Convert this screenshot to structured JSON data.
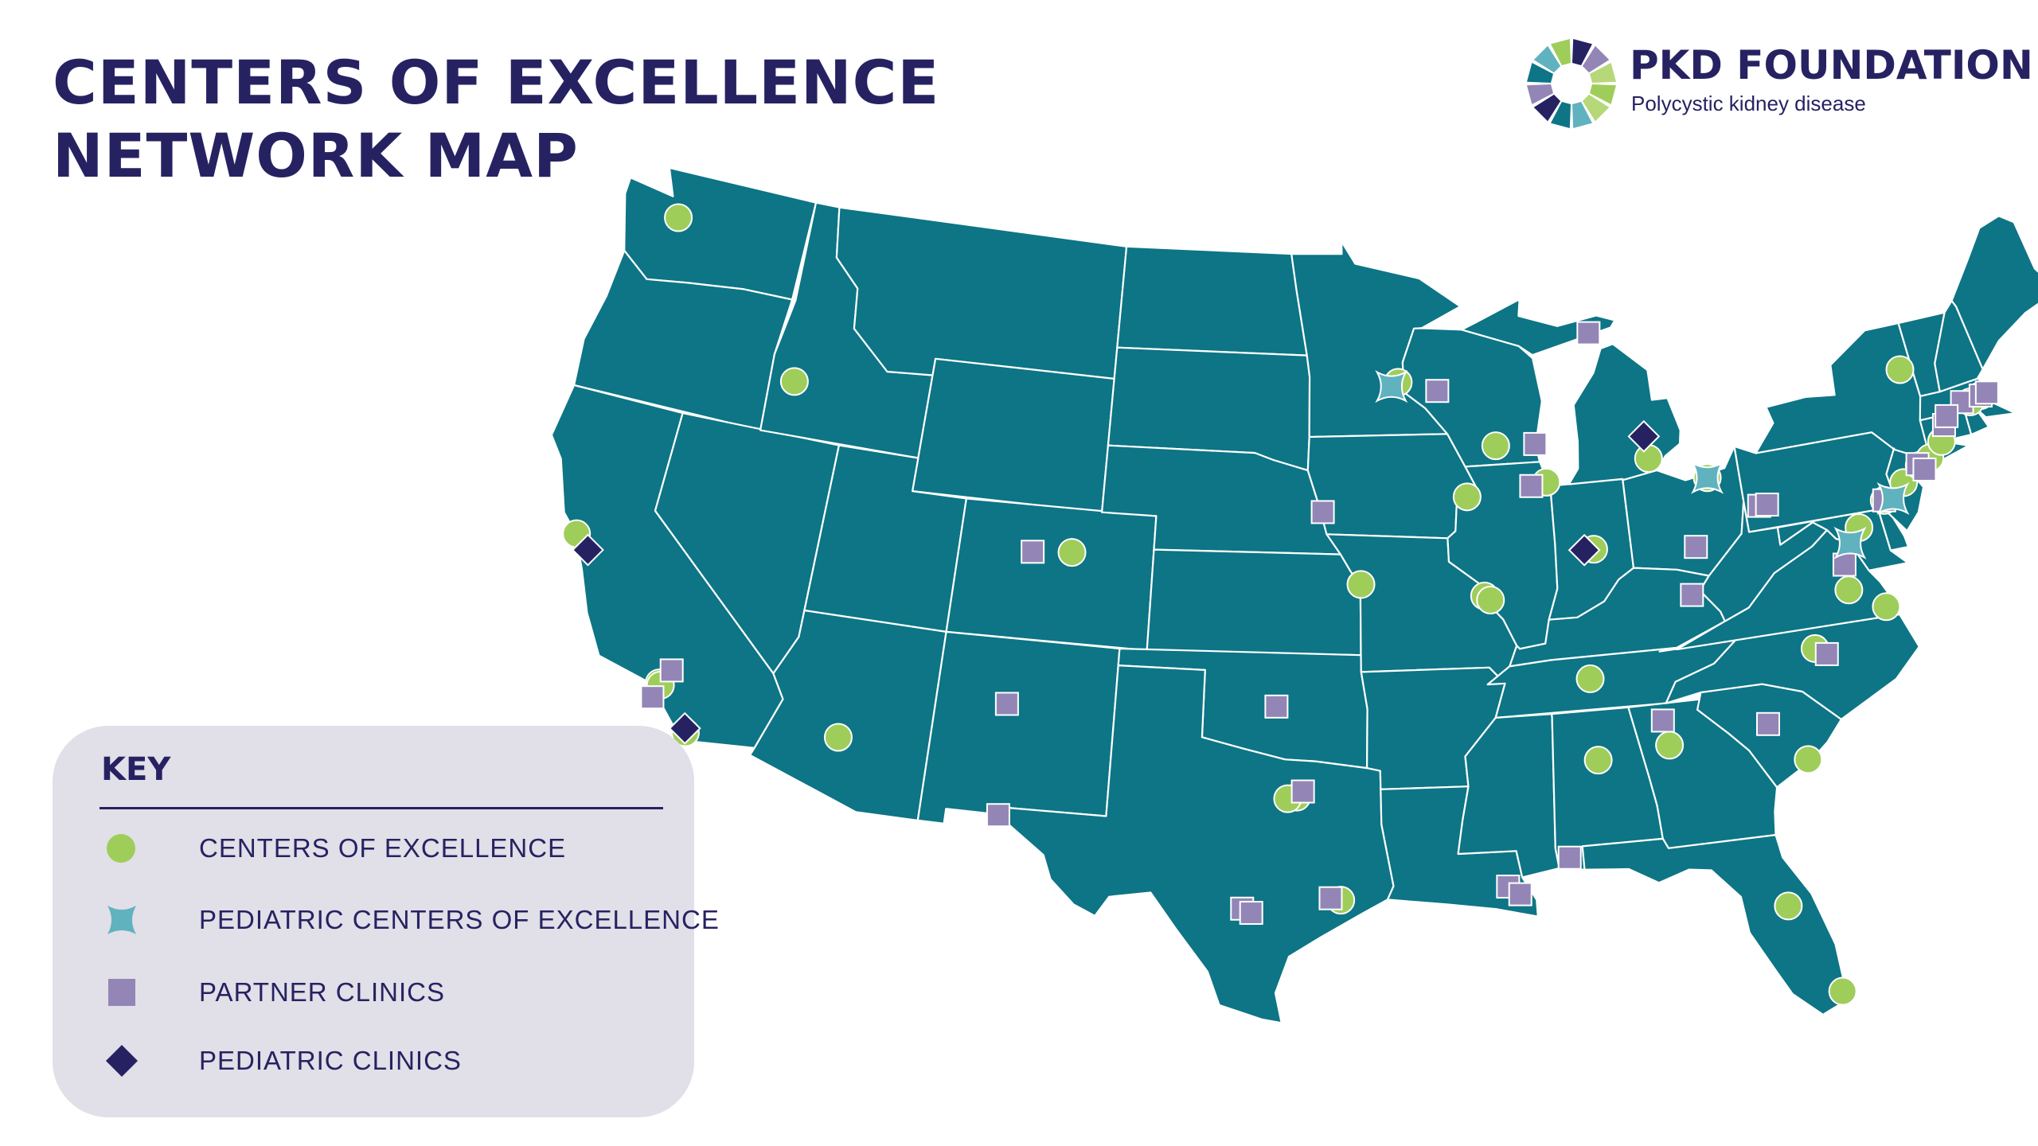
{
  "title": {
    "line1": "CENTERS OF EXCELLENCE",
    "line2": "NETWORK MAP"
  },
  "logo": {
    "name": "PKD FOUNDATION",
    "tagline": "Polycystic kidney disease"
  },
  "colors": {
    "map_fill": "#0d7585",
    "state_border": "#ffffff",
    "center_marker": "#9fcd5a",
    "pediatric_center_marker": "#61b2bf",
    "partner_marker": "#9386b6",
    "pediatric_clinic_marker": "#262262",
    "title": "#262262",
    "key_background": "#e1dfe7"
  },
  "key": {
    "title": "KEY",
    "items": [
      {
        "type": "center",
        "icon": "green-circle-icon",
        "label": "CENTERS OF EXCELLENCE"
      },
      {
        "type": "pediatric_center",
        "icon": "teal-star-icon",
        "label": "PEDIATRIC CENTERS OF EXCELLENCE"
      },
      {
        "type": "partner",
        "icon": "purple-square-icon",
        "label": "PARTNER CLINICS"
      },
      {
        "type": "pediatric_clinic",
        "icon": "navy-diamond-icon",
        "label": "PEDIATRIC CLINICS"
      }
    ]
  },
  "markers": {
    "centers_of_excellence": [
      [
        47.62,
        -122.33
      ],
      [
        43.62,
        -116.21
      ],
      [
        37.78,
        -122.45
      ],
      [
        34.06,
        -118.3
      ],
      [
        34.0,
        -118.24
      ],
      [
        32.78,
        -117.05
      ],
      [
        33.45,
        -112.07
      ],
      [
        39.74,
        -104.99
      ],
      [
        32.78,
        -96.8
      ],
      [
        32.73,
        -97.1
      ],
      [
        29.7,
        -95.38
      ],
      [
        39.1,
        -94.58
      ],
      [
        38.63,
        -90.2
      ],
      [
        38.5,
        -90.0
      ],
      [
        41.6,
        -90.6
      ],
      [
        43.07,
        -89.4
      ],
      [
        45.1,
        -93.0
      ],
      [
        41.88,
        -87.63
      ],
      [
        39.77,
        -86.16
      ],
      [
        42.28,
        -83.74
      ],
      [
        41.49,
        -81.69
      ],
      [
        35.95,
        -86.78
      ],
      [
        33.52,
        -86.8
      ],
      [
        33.75,
        -84.39
      ],
      [
        32.78,
        -79.93
      ],
      [
        36.0,
        -79.0
      ],
      [
        37.54,
        -77.44
      ],
      [
        36.85,
        -76.29
      ],
      [
        39.3,
        -76.61
      ],
      [
        39.95,
        -75.5
      ],
      [
        40.35,
        -74.66
      ],
      [
        40.75,
        -73.95
      ],
      [
        40.9,
        -73.5
      ],
      [
        41.3,
        -72.93
      ],
      [
        42.36,
        -71.06
      ],
      [
        42.25,
        -71.5
      ],
      [
        43.65,
        -73.75
      ],
      [
        28.54,
        -81.38
      ],
      [
        25.76,
        -80.19
      ]
    ],
    "pediatric_centers_of_excellence": [
      [
        44.98,
        -93.27
      ],
      [
        41.49,
        -81.69
      ],
      [
        39.95,
        -75.17
      ],
      [
        38.9,
        -77.04
      ]
    ],
    "partner_clinics": [
      [
        34.5,
        -118.0
      ],
      [
        33.6,
        -118.4
      ],
      [
        39.65,
        -106.4
      ],
      [
        35.08,
        -106.65
      ],
      [
        31.76,
        -106.49
      ],
      [
        35.47,
        -97.52
      ],
      [
        32.95,
        -96.6
      ],
      [
        29.76,
        -95.7
      ],
      [
        29.42,
        -98.49
      ],
      [
        29.3,
        -98.2
      ],
      [
        41.26,
        -95.94
      ],
      [
        44.8,
        -91.5
      ],
      [
        43.04,
        -87.91
      ],
      [
        41.8,
        -88.2
      ],
      [
        46.2,
        -85.4
      ],
      [
        39.5,
        -82.5
      ],
      [
        38.1,
        -82.9
      ],
      [
        30.69,
        -88.04
      ],
      [
        29.95,
        -90.07
      ],
      [
        29.7,
        -89.7
      ],
      [
        34.0,
        -81.03
      ],
      [
        34.5,
        -84.5
      ],
      [
        35.78,
        -78.64
      ],
      [
        38.3,
        -77.4
      ],
      [
        40.44,
        -79.99
      ],
      [
        40.44,
        -79.7
      ],
      [
        39.95,
        -75.5
      ],
      [
        40.8,
        -74.0
      ],
      [
        40.6,
        -73.8
      ],
      [
        41.76,
        -72.68
      ],
      [
        42.3,
        -71.8
      ],
      [
        42.36,
        -71.06
      ],
      [
        42.0,
        -72.5
      ],
      [
        42.4,
        -70.8
      ]
    ],
    "pediatric_clinics": [
      [
        37.4,
        -121.9
      ],
      [
        32.9,
        -117.1
      ],
      [
        39.77,
        -86.5
      ],
      [
        42.95,
        -83.8
      ]
    ]
  }
}
